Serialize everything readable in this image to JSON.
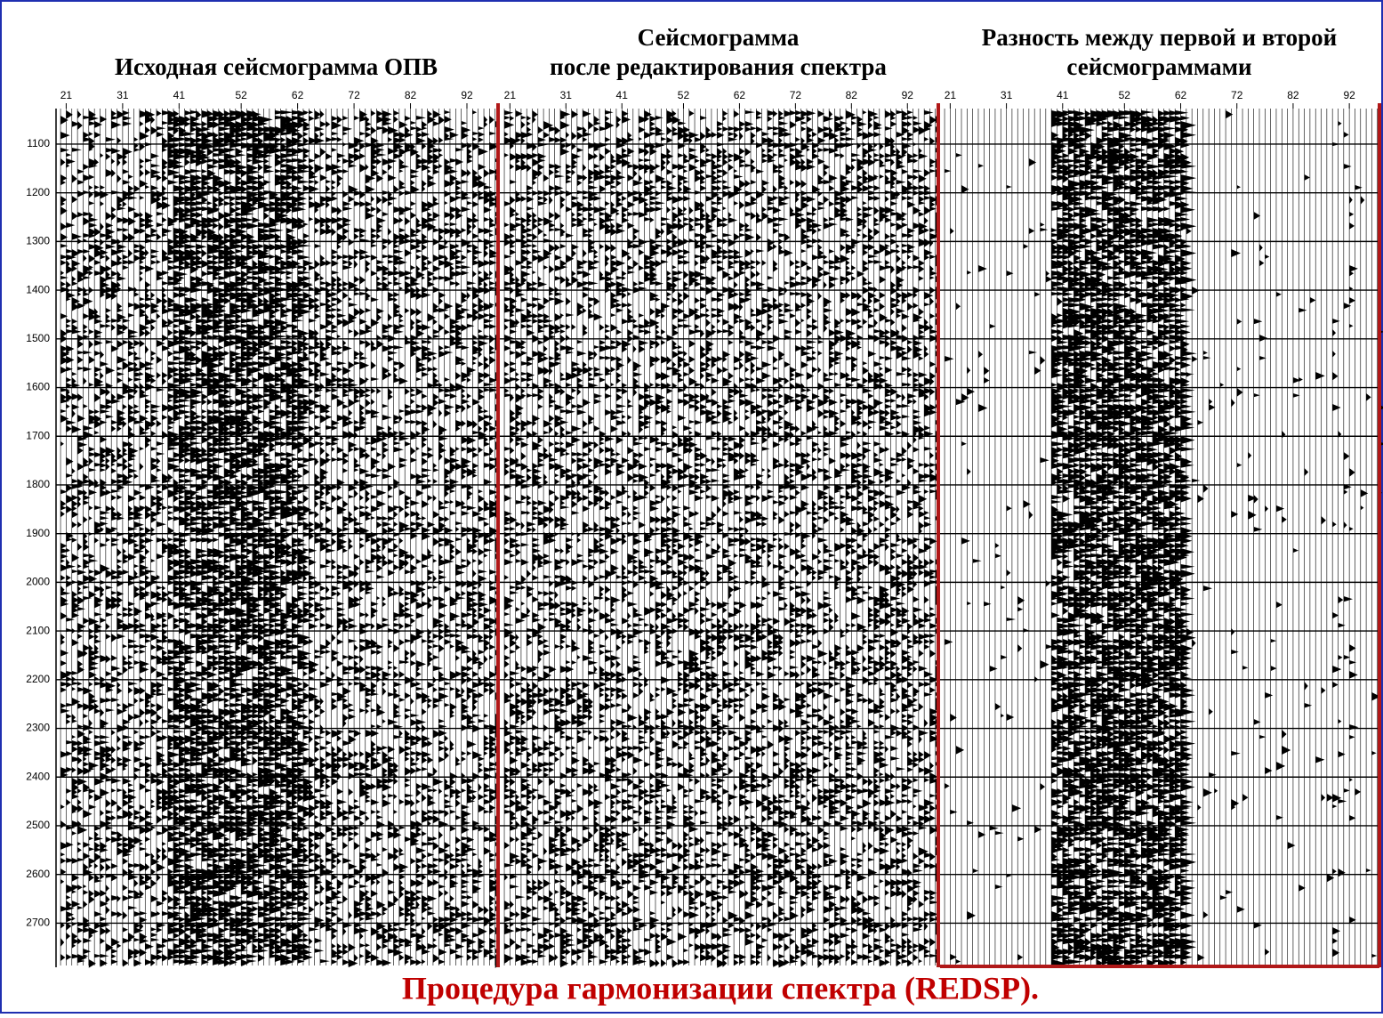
{
  "panels": [
    {
      "title_lines": [
        "Исходная сейсмограмма ОПВ"
      ]
    },
    {
      "title_lines": [
        "Сейсмограмма",
        "после редактирования спектра"
      ]
    },
    {
      "title_lines": [
        "Разность между первой и второй",
        "сейсмограммами"
      ]
    }
  ],
  "trace_ticks": [
    21,
    31,
    41,
    52,
    62,
    72,
    82,
    92
  ],
  "trace_range": [
    19.2,
    97.2
  ],
  "time_ticks": [
    1100,
    1200,
    1300,
    1400,
    1500,
    1600,
    1700,
    1800,
    1900,
    2000,
    2100,
    2200,
    2300,
    2400,
    2500,
    2600,
    2700
  ],
  "time_range": [
    1027,
    2787
  ],
  "caption": "Процедура гармонизации спектра (REDSP)."
}
